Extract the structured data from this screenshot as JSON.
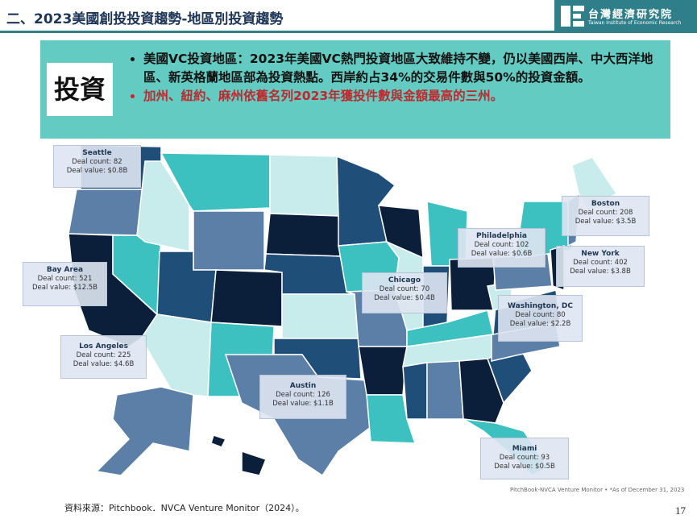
{
  "header": {
    "title": "二、2023美國創投投資趨勢-地區別投資趨勢",
    "logo_text": "台灣經濟研究院",
    "logo_subtitle": "Taiwan Institute of Economic Research"
  },
  "summary": {
    "label": "投資",
    "bullets": [
      "美國VC投資地區：2023年美國VC熱門投資地區大致維持不變，仍以美國西岸、中大西洋地區、新英格蘭地區部為投資熱點。西岸約占34%的交易件數與50%的投資金額。",
      "加州、紐約、麻州依舊名列2023年獲投件數與金額最高的三州。"
    ]
  },
  "callouts": [
    {
      "city": "Seattle",
      "count": "Deal count: 82",
      "value": "Deal value: $0.8B"
    },
    {
      "city": "Boston",
      "count": "Deal count: 208",
      "value": "Deal value: $3.5B"
    },
    {
      "city": "Philadelphia",
      "count": "Deal count: 102",
      "value": "Deal value: $0.6B"
    },
    {
      "city": "New York",
      "count": "Deal count: 402",
      "value": "Deal value: $3.8B"
    },
    {
      "city": "Bay Area",
      "count": "Deal count: 521",
      "value": "Deal value: $12.5B"
    },
    {
      "city": "Chicago",
      "count": "Deal count: 70",
      "value": "Deal value: $0.4B"
    },
    {
      "city": "Washington, DC",
      "count": "Deal count: 80",
      "value": "Deal value: $2.2B"
    },
    {
      "city": "Los Angeles",
      "count": "Deal count: 225",
      "value": "Deal value: $4.6B"
    },
    {
      "city": "Austin",
      "count": "Deal count: 126",
      "value": "Deal value: $1.1B"
    },
    {
      "city": "Miami",
      "count": "Deal count: 93",
      "value": "Deal value: $0.5B"
    }
  ],
  "map_note": "PitchBook-NVCA Venture Monitor • *As of December 31, 2023",
  "source": "資料來源：Pitchbook．NVCA Venture Monitor（2024）。",
  "page_number": "17"
}
